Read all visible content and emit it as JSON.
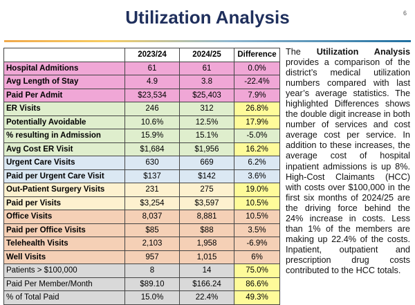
{
  "header": {
    "title": "Utilization Analysis",
    "page_number": "6"
  },
  "table": {
    "columns": [
      "",
      "2023/24",
      "2024/25",
      "Difference"
    ],
    "rows": [
      {
        "label": "Hospital Admitions",
        "y1": "61",
        "y2": "61",
        "diff": "0.0%",
        "group": "pink",
        "highlight": false
      },
      {
        "label": "Avg Length of Stay",
        "y1": "4.9",
        "y2": "3.8",
        "diff": "-22.4%",
        "group": "pink",
        "highlight": false
      },
      {
        "label": "Paid Per Admit",
        "y1": "$23,534",
        "y2": "$25,403",
        "diff": "7.9%",
        "group": "pink",
        "highlight": false
      },
      {
        "label": "ER Visits",
        "y1": "246",
        "y2": "312",
        "diff": "26.8%",
        "group": "green",
        "highlight": true
      },
      {
        "label": "Potentially Avoidable",
        "y1": "10.6%",
        "y2": "12.5%",
        "diff": "17.9%",
        "group": "green",
        "highlight": true
      },
      {
        "label": "% resulting in Admission",
        "y1": "15.9%",
        "y2": "15.1%",
        "diff": "-5.0%",
        "group": "green",
        "highlight": false
      },
      {
        "label": "Avg Cost ER Visit",
        "y1": "$1,684",
        "y2": "$1,956",
        "diff": "16.2%",
        "group": "green",
        "highlight": true
      },
      {
        "label": "Urgent Care Visits",
        "y1": "630",
        "y2": "669",
        "diff": "6.2%",
        "group": "blue",
        "highlight": false
      },
      {
        "label": "Paid per Urgent Care Visit",
        "y1": "$137",
        "y2": "$142",
        "diff": "3.6%",
        "group": "blue",
        "highlight": false
      },
      {
        "label": "Out-Patient Surgery Visits",
        "y1": "231",
        "y2": "275",
        "diff": "19.0%",
        "group": "cream",
        "highlight": true
      },
      {
        "label": "Paid per Visits",
        "y1": "$3,254",
        "y2": "$3,597",
        "diff": "10.5%",
        "group": "cream",
        "highlight": true
      },
      {
        "label": "Office Visits",
        "y1": "8,037",
        "y2": "8,881",
        "diff": "10.5%",
        "group": "peach",
        "highlight": false
      },
      {
        "label": "Paid per Office Visits",
        "y1": "$85",
        "y2": "$88",
        "diff": "3.5%",
        "group": "peach",
        "highlight": false
      },
      {
        "label": "Telehealth Visits",
        "y1": "2,103",
        "y2": "1,958",
        "diff": "-6.9%",
        "group": "peach",
        "highlight": false
      },
      {
        "label": "Well Visits",
        "y1": "957",
        "y2": "1,015",
        "diff": "6%",
        "group": "peach",
        "highlight": false
      },
      {
        "label": "Patients > $100,000",
        "y1": "8",
        "y2": "14",
        "diff": "75.0%",
        "group": "gray",
        "highlight": true
      },
      {
        "label": "Paid Per Member/Month",
        "y1": "$89.10",
        "y2": "$166.24",
        "diff": "86.6%",
        "group": "gray",
        "highlight": true
      },
      {
        "label": "% of Total Paid",
        "y1": "15.0%",
        "y2": "22.4%",
        "diff": "49.3%",
        "group": "gray",
        "highlight": true
      }
    ]
  },
  "description": {
    "lead": "The ",
    "emphasis": "Utilization Analysis",
    "body": " provides a comparison of the district’s medical utilization numbers compared with last year’s average statistics. The highlighted Differences shows the double digit increase in both number of services and cost average cost per service. In addition to these increases, the average cost of hospital inpatient admissions is up 8%. High-Cost Claimants (HCC) with costs over $100,000 in the first six months of 2024/25 are the driving force behind the 24% increase in costs. Less than 1% of the members are making up 22.4% of the costs. Inpatient, outpatient and prescription drug costs contributed to the HCC totals."
  }
}
